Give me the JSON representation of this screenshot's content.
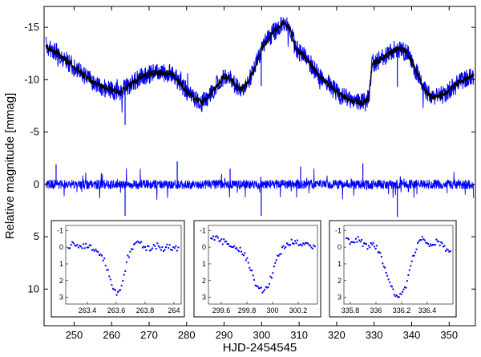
{
  "chart_data": {
    "type": "line",
    "xlabel": "HJD-2454545",
    "ylabel": "Relative magnitude [mmag]",
    "xlim": [
      242,
      357
    ],
    "ylim": [
      -17,
      13.5
    ],
    "y_inverted": true,
    "x_ticks": [
      250,
      260,
      270,
      280,
      290,
      300,
      310,
      320,
      330,
      340,
      350
    ],
    "y_ticks": [
      -15,
      -10,
      -5,
      0,
      5,
      10
    ],
    "y_tick_labels": [
      "-15",
      "-10",
      "-5",
      "0",
      "5",
      "10"
    ],
    "series": [
      {
        "role": "light-curve-raw",
        "color": "#0000ff",
        "x": [
          242.5,
          246,
          250,
          254,
          258,
          262,
          265,
          268,
          272,
          276,
          278,
          281,
          284,
          286,
          288,
          290,
          292,
          294,
          296,
          298,
          300,
          303,
          306,
          307.5,
          309,
          312,
          315,
          318,
          321,
          324,
          327,
          328.5,
          329.5,
          331,
          333,
          335,
          337,
          339,
          341,
          343,
          345,
          347,
          350,
          353,
          356.5
        ],
        "y": [
          -13.2,
          -12.4,
          -11.2,
          -10.0,
          -9.2,
          -8.8,
          -9.5,
          -10.3,
          -10.7,
          -10.6,
          -9.8,
          -8.5,
          -7.8,
          -8.5,
          -9.5,
          -10.3,
          -10.0,
          -9.0,
          -9.5,
          -11.0,
          -13.0,
          -14.5,
          -15.5,
          -15.0,
          -13.0,
          -12.0,
          -10.5,
          -9.5,
          -8.5,
          -8.0,
          -7.8,
          -8.2,
          -11.5,
          -11.8,
          -12.2,
          -12.8,
          -13.0,
          -12.5,
          -11.0,
          -9.3,
          -8.4,
          -8.3,
          -9.0,
          -9.8,
          -10.4
        ]
      },
      {
        "role": "residuals",
        "color": "#0000ff",
        "x": [
          242.5,
          356.5
        ],
        "y": [
          0,
          0
        ],
        "spikes": [
          {
            "x": 263.6,
            "y": 3.0
          },
          {
            "x": 299.9,
            "y": 3.0
          },
          {
            "x": 336.2,
            "y": 3.1
          },
          {
            "x": 245.2,
            "y": -1.9
          },
          {
            "x": 277.5,
            "y": -2.2
          },
          {
            "x": 291.6,
            "y": -1.5
          },
          {
            "x": 310.4,
            "y": -1.7
          },
          {
            "x": 327.0,
            "y": -2.0
          }
        ]
      }
    ],
    "insets": [
      {
        "name": "eclipse-1",
        "xlim": [
          263.25,
          264.05
        ],
        "ylim": [
          -1.3,
          3.4
        ],
        "x_ticks": [
          263.4,
          263.6,
          263.8,
          264
        ],
        "x_tick_labels": [
          "263.4",
          "263.6",
          "263.8",
          "264"
        ],
        "y_ticks": [
          -1,
          0,
          1,
          2,
          3
        ],
        "y_tick_labels": [
          "-1",
          "0",
          "1",
          "2",
          "3"
        ],
        "x": [
          263.28,
          263.32,
          263.36,
          263.4,
          263.44,
          263.48,
          263.52,
          263.55,
          263.58,
          263.6,
          263.62,
          263.64,
          263.66,
          263.68,
          263.72,
          263.76,
          263.8,
          263.84,
          263.88,
          263.92,
          263.96,
          264.0,
          264.04
        ],
        "y": [
          -0.1,
          -0.2,
          0.0,
          -0.1,
          0.1,
          0.3,
          0.8,
          1.6,
          2.4,
          2.8,
          2.6,
          2.1,
          1.4,
          0.6,
          0.0,
          -0.3,
          0.0,
          0.1,
          -0.1,
          0.1,
          0.0,
          0.1,
          0.0
        ]
      },
      {
        "name": "eclipse-2",
        "xlim": [
          299.5,
          300.35
        ],
        "ylim": [
          -1.3,
          3.4
        ],
        "x_ticks": [
          299.6,
          299.8,
          300,
          300.2
        ],
        "x_tick_labels": [
          "299.6",
          "299.8",
          "300",
          "300.2"
        ],
        "y_ticks": [
          -1,
          0,
          1,
          2,
          3
        ],
        "y_tick_labels": [
          "-1",
          "0",
          "1",
          "2",
          "3"
        ],
        "x": [
          299.54,
          299.58,
          299.62,
          299.66,
          299.7,
          299.74,
          299.78,
          299.81,
          299.84,
          299.87,
          299.9,
          299.93,
          299.96,
          299.99,
          300.02,
          300.06,
          300.1,
          300.14,
          300.18,
          300.22,
          300.26,
          300.3,
          300.34
        ],
        "y": [
          -0.6,
          -0.5,
          -0.3,
          -0.2,
          0.0,
          0.1,
          0.4,
          0.9,
          1.6,
          2.2,
          2.5,
          2.6,
          2.4,
          1.8,
          1.0,
          0.3,
          -0.1,
          -0.3,
          -0.2,
          -0.3,
          -0.2,
          0.0,
          0.1
        ]
      },
      {
        "name": "eclipse-3",
        "xlim": [
          335.75,
          336.6
        ],
        "ylim": [
          -1.3,
          3.4
        ],
        "x_ticks": [
          335.8,
          336,
          336.2,
          336.4
        ],
        "x_tick_labels": [
          "335.8",
          "336",
          "336.2",
          "336.4"
        ],
        "y_ticks": [
          -1,
          0,
          1,
          2,
          3
        ],
        "y_tick_labels": [
          "-1",
          "0",
          "1",
          "2",
          "3"
        ],
        "x": [
          335.78,
          335.82,
          335.86,
          335.9,
          335.94,
          335.98,
          336.02,
          336.05,
          336.08,
          336.11,
          336.14,
          336.17,
          336.2,
          336.23,
          336.26,
          336.29,
          336.32,
          336.36,
          336.4,
          336.44,
          336.48,
          336.52,
          336.56
        ],
        "y": [
          -0.4,
          -0.3,
          -0.5,
          -0.2,
          0.0,
          -0.3,
          0.2,
          0.8,
          1.5,
          2.2,
          2.8,
          3.0,
          2.9,
          2.4,
          1.5,
          0.6,
          -0.1,
          -0.6,
          -0.3,
          0.0,
          -0.4,
          -0.1,
          0.2
        ]
      }
    ]
  }
}
